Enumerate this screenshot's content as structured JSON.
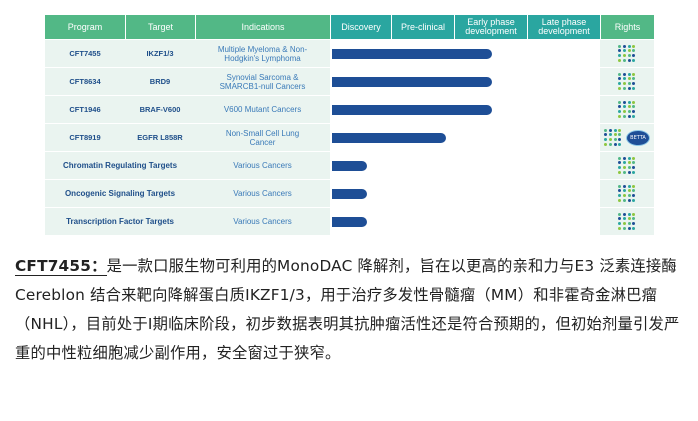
{
  "pipeline": {
    "headers": {
      "program": "Program",
      "target": "Target",
      "indications": "Indications",
      "discovery": "Discovery",
      "preclinical": "Pre-clinical",
      "early_phase": "Early phase\ndevelopment",
      "late_phase": "Late phase\ndevelopment",
      "rights": "Rights"
    },
    "programs": [
      {
        "program": "CFT7455",
        "target": "IKZF1/3",
        "indication": "Multiple Myeloma & Non-\nHodgkin's Lymphoma",
        "progress": 0.6
      },
      {
        "program": "CFT8634",
        "target": "BRD9",
        "indication": "Synovial Sarcoma &\nSMARCB1-null Cancers",
        "progress": 0.6
      },
      {
        "program": "CFT1946",
        "target": "BRAF-V600",
        "indication": "V600 Mutant Cancers",
        "progress": 0.6
      },
      {
        "program": "CFT8919",
        "target": "EGFR L858R",
        "indication": "Non-Small Cell Lung\nCancer",
        "progress": 0.43,
        "partner": "BETTA"
      }
    ],
    "categories": [
      {
        "name": "Chromatin Regulating Targets",
        "indication": "Various Cancers",
        "progress": 0.13
      },
      {
        "name": "Oncogenic Signaling Targets",
        "indication": "Various Cancers",
        "progress": 0.13
      },
      {
        "name": "Transcription Factor Targets",
        "indication": "Various Cancers",
        "progress": 0.13
      }
    ],
    "colors": {
      "header_green": "#52b886",
      "header_teal": "#2aa6a0",
      "bar": "#1e4e96",
      "row_bg": "#eaf4f0"
    }
  },
  "description": {
    "lead": "CFT7455：",
    "body": "是一款口服生物可利用的MonoDAC 降解剂，旨在以更高的亲和力与E3 泛素连接酶Cereblon 结合来靶向降解蛋白质IKZF1/3，用于治疗多发性骨髓瘤（MM）和非霍奇金淋巴瘤（NHL），目前处于I期临床阶段，初步数据表明其抗肿瘤活性还是符合预期的，但初始剂量引发严重的中性粒细胞减少副作用，安全窗过于狭窄。"
  }
}
